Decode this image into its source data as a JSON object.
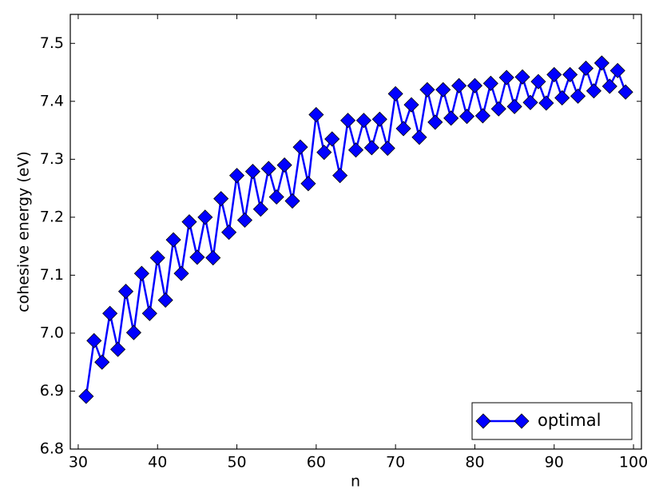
{
  "chart_data": {
    "type": "line",
    "xlabel": "n",
    "ylabel": "cohesive energy (eV)",
    "x": [
      31,
      32,
      33,
      34,
      35,
      36,
      37,
      38,
      39,
      40,
      41,
      42,
      43,
      44,
      45,
      46,
      47,
      48,
      49,
      50,
      51,
      52,
      53,
      54,
      55,
      56,
      57,
      58,
      59,
      60,
      61,
      62,
      63,
      64,
      65,
      66,
      67,
      68,
      69,
      70,
      71,
      72,
      73,
      74,
      75,
      76,
      77,
      78,
      79,
      80,
      81,
      82,
      83,
      84,
      85,
      86,
      87,
      88,
      89,
      90,
      91,
      92,
      93,
      94,
      95,
      96,
      97,
      98,
      99
    ],
    "series": [
      {
        "name": "optimal",
        "color": "#0000ff",
        "values": [
          6.891,
          6.987,
          6.95,
          7.034,
          6.972,
          7.072,
          7.001,
          7.103,
          7.034,
          7.13,
          7.057,
          7.161,
          7.103,
          7.192,
          7.131,
          7.2,
          7.13,
          7.232,
          7.174,
          7.272,
          7.195,
          7.279,
          7.214,
          7.284,
          7.235,
          7.29,
          7.228,
          7.321,
          7.258,
          7.377,
          7.312,
          7.335,
          7.272,
          7.367,
          7.316,
          7.367,
          7.32,
          7.369,
          7.319,
          7.413,
          7.353,
          7.394,
          7.338,
          7.42,
          7.364,
          7.42,
          7.371,
          7.427,
          7.374,
          7.427,
          7.375,
          7.431,
          7.387,
          7.441,
          7.391,
          7.442,
          7.398,
          7.434,
          7.397,
          7.446,
          7.406,
          7.446,
          7.409,
          7.457,
          7.418,
          7.466,
          7.426,
          7.453,
          7.416
        ]
      }
    ],
    "xlim": [
      29,
      101
    ],
    "xticks": [
      30,
      40,
      50,
      60,
      70,
      80,
      90,
      100
    ],
    "ylim": [
      6.8,
      7.55
    ],
    "yticks": [
      6.8,
      6.9,
      {
        "value": 7.0,
        "label": "7.0"
      },
      7.1,
      7.2,
      7.3,
      7.4,
      7.5
    ],
    "legend": "lower right"
  }
}
